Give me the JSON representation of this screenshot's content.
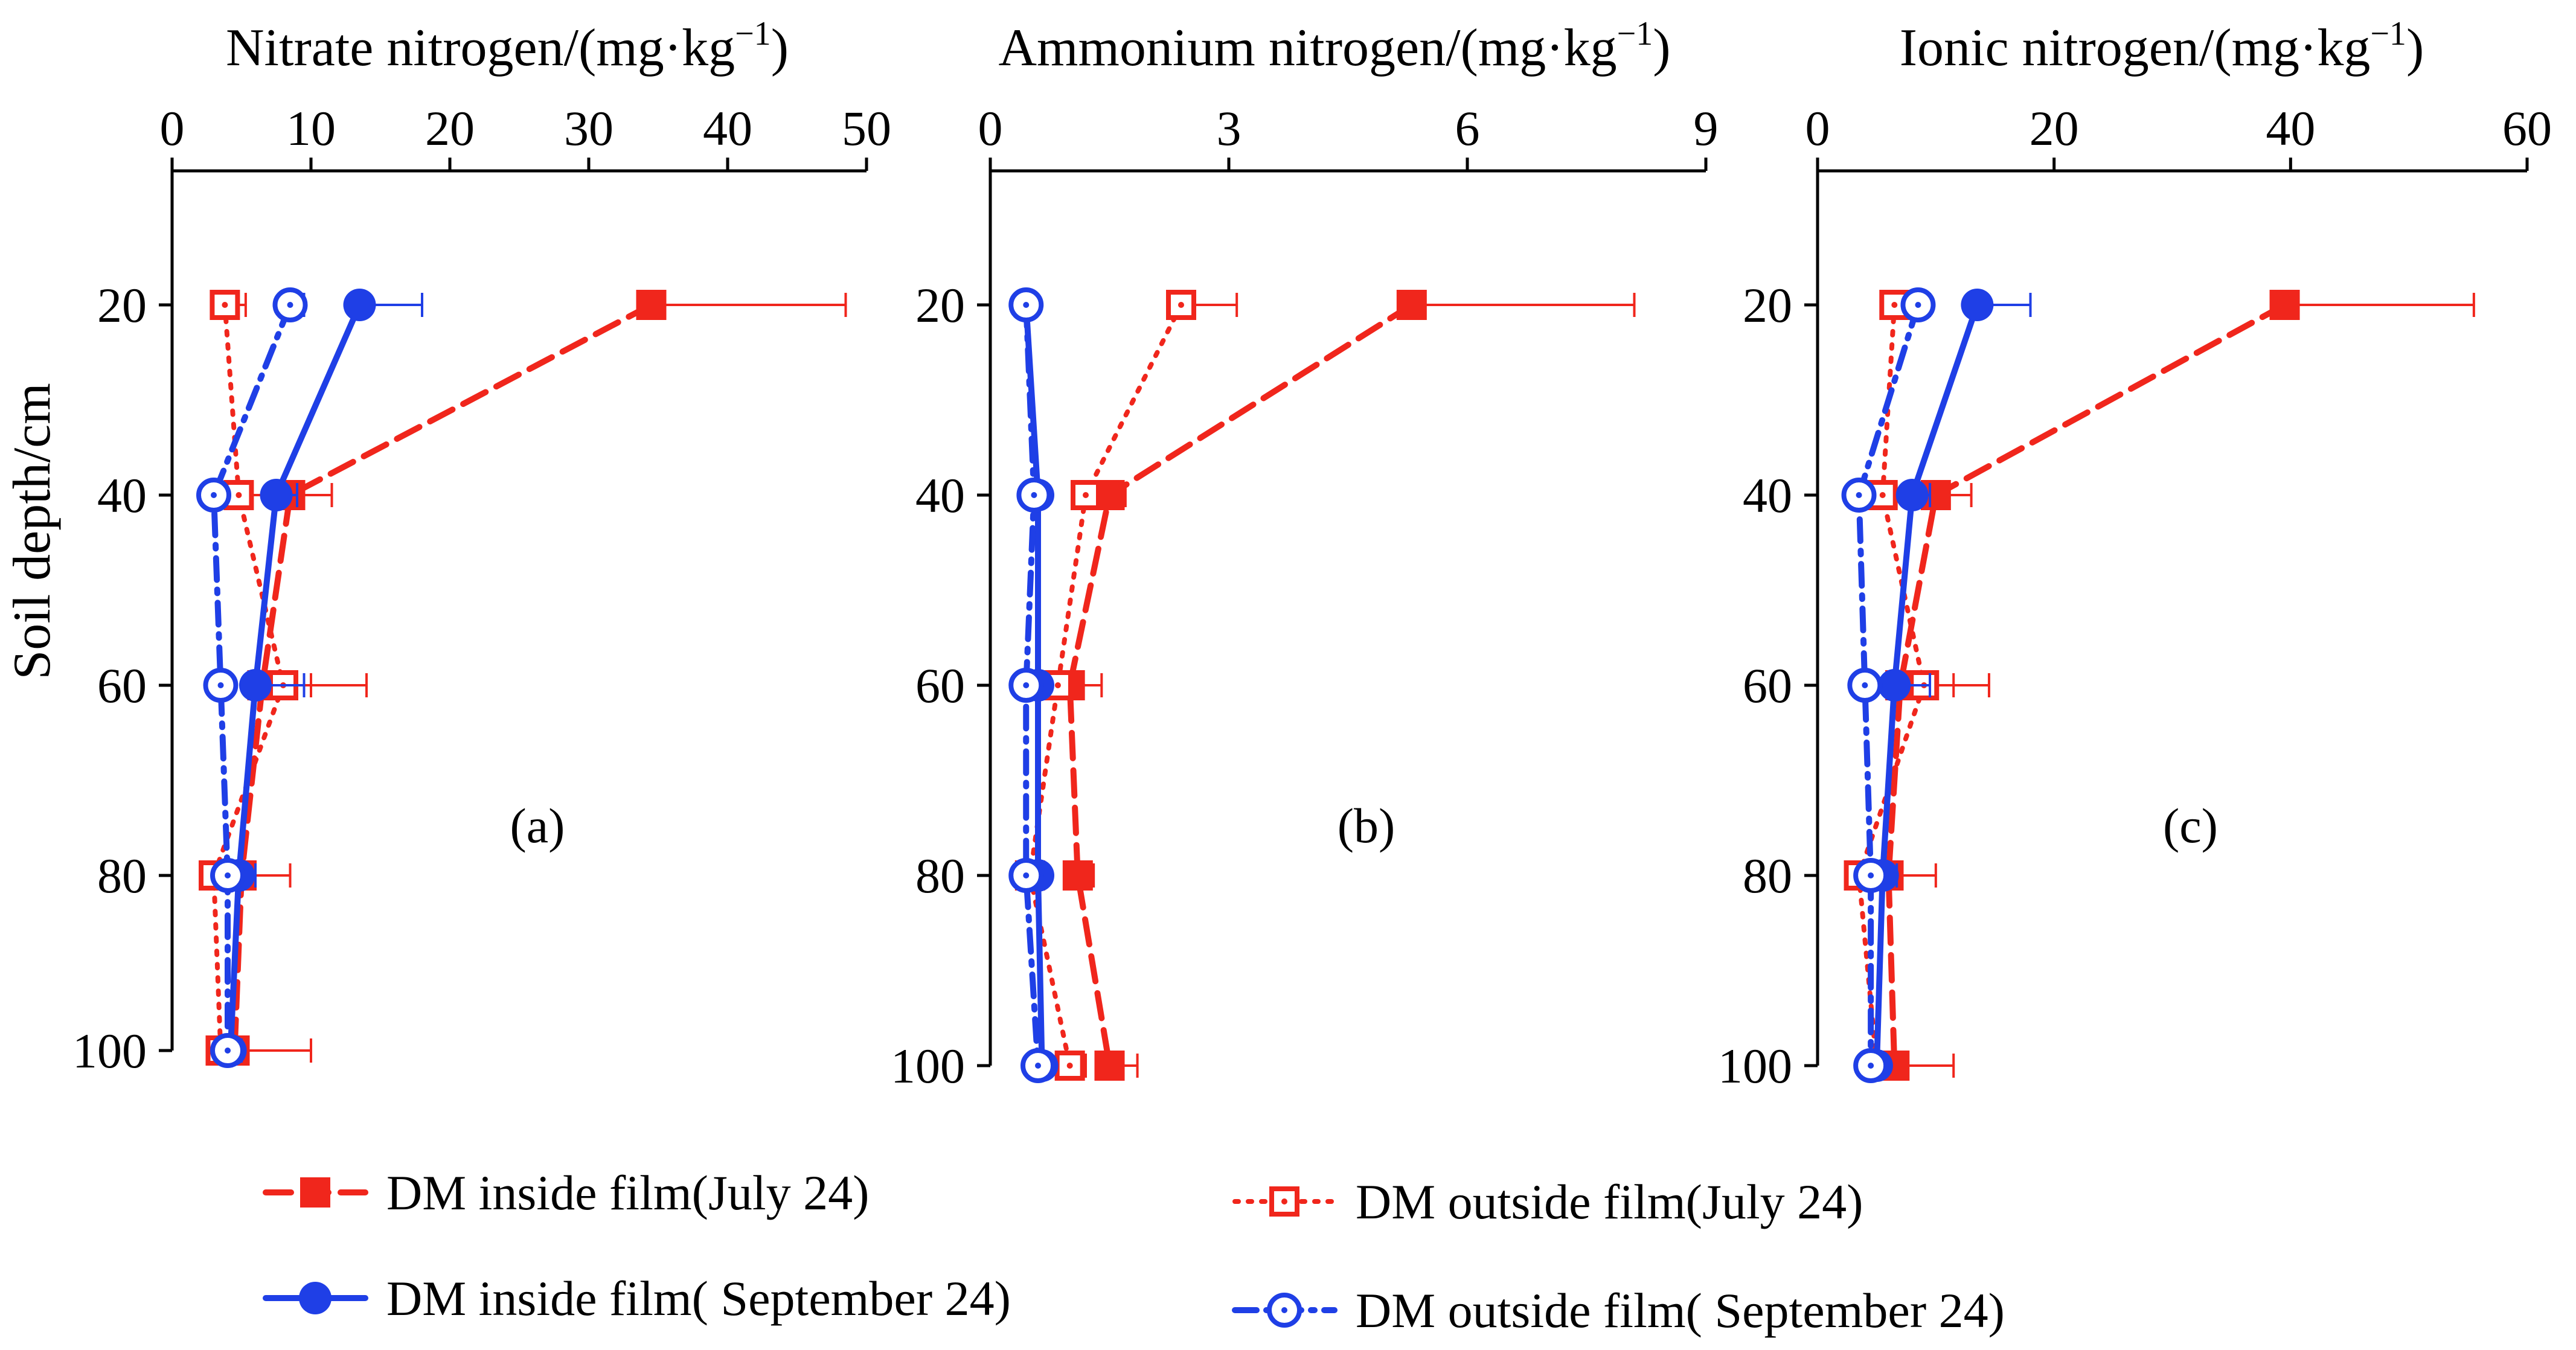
{
  "figure": {
    "ylabel": "Soil depth/cm",
    "colors": {
      "red": "#f0261c",
      "blue": "#1f3fe6",
      "axis": "#000000"
    }
  },
  "chart_data": [
    {
      "type": "line",
      "panel_label": "(a)",
      "panel_letter": "a",
      "title": "Nitrate nitrogen/(mg·kg",
      "title_sup": "−1",
      "title_end": ")",
      "xlim": [
        0,
        50
      ],
      "xticks": [
        0,
        10,
        20,
        30,
        40,
        50
      ],
      "ylim": [
        10,
        100
      ],
      "yticks": [
        20,
        40,
        60,
        80,
        100
      ],
      "y_inverted": true,
      "ylabel": "Soil depth/cm",
      "series": [
        {
          "name": "DM inside film(July 24)",
          "color": "#f0261c",
          "style": "dashed",
          "marker": "square-filled",
          "x": [
            34.5,
            8.5,
            6.5,
            5.0,
            4.5
          ],
          "y": [
            20,
            40,
            60,
            80,
            100
          ],
          "err": [
            14.0,
            3.0,
            7.5,
            3.5,
            5.5
          ]
        },
        {
          "name": "DM outside film(July 24)",
          "color": "#f0261c",
          "style": "dotted",
          "marker": "square-open-dot",
          "x": [
            3.8,
            4.8,
            8.0,
            3.0,
            3.5
          ],
          "y": [
            20,
            40,
            60,
            80,
            100
          ],
          "err": [
            1.5,
            2.5,
            2.0,
            1.0,
            1.5
          ]
        },
        {
          "name": "DM inside film( September 24)",
          "color": "#1f3fe6",
          "style": "solid",
          "marker": "circle-filled",
          "x": [
            13.5,
            7.5,
            6.0,
            4.8,
            4.2
          ],
          "y": [
            20,
            40,
            60,
            80,
            100
          ],
          "err": [
            4.5,
            1.5,
            3.5,
            1.2,
            0.8
          ]
        },
        {
          "name": "DM outside film( September 24)",
          "color": "#1f3fe6",
          "style": "dashdot",
          "marker": "circle-open-dot",
          "x": [
            8.5,
            3.0,
            3.5,
            4.0,
            4.0
          ],
          "y": [
            20,
            40,
            60,
            80,
            100
          ],
          "err": [
            1.0,
            0.5,
            0.5,
            0.5,
            0.5
          ]
        }
      ]
    },
    {
      "type": "line",
      "panel_label": "(b)",
      "panel_letter": "b",
      "title": "Ammonium nitrogen/(mg·kg",
      "title_sup": "−1",
      "title_end": ")",
      "xlim": [
        0,
        9
      ],
      "xticks": [
        0,
        3,
        6,
        9
      ],
      "ylim": [
        10,
        100
      ],
      "yticks": [
        20,
        40,
        60,
        80,
        100
      ],
      "y_inverted": true,
      "ylabel": "",
      "series": [
        {
          "name": "DM inside film(July 24)",
          "color": "#f0261c",
          "style": "dashed",
          "marker": "square-filled",
          "x": [
            5.3,
            1.5,
            1.0,
            1.1,
            1.5
          ],
          "y": [
            20,
            40,
            60,
            80,
            100
          ],
          "err": [
            2.8,
            0.2,
            0.4,
            0.2,
            0.35
          ]
        },
        {
          "name": "DM outside film(July 24)",
          "color": "#f0261c",
          "style": "dotted",
          "marker": "square-open-dot",
          "x": [
            2.4,
            1.2,
            0.85,
            0.5,
            1.0
          ],
          "y": [
            20,
            40,
            60,
            80,
            100
          ],
          "err": [
            0.7,
            0.2,
            0.2,
            0.15,
            0.2
          ]
        },
        {
          "name": "DM inside film( September 24)",
          "color": "#1f3fe6",
          "style": "solid",
          "marker": "circle-filled",
          "x": [
            0.45,
            0.6,
            0.6,
            0.6,
            0.65
          ],
          "y": [
            20,
            40,
            60,
            80,
            100
          ],
          "err": [
            0.1,
            0.1,
            0.1,
            0.1,
            0.1
          ]
        },
        {
          "name": "DM outside film( September 24)",
          "color": "#1f3fe6",
          "style": "dashdot",
          "marker": "circle-open-dot",
          "x": [
            0.45,
            0.55,
            0.45,
            0.45,
            0.6
          ],
          "y": [
            20,
            40,
            60,
            80,
            100
          ],
          "err": [
            0.05,
            0.05,
            0.05,
            0.05,
            0.05
          ]
        }
      ]
    },
    {
      "type": "line",
      "panel_label": "(c)",
      "panel_letter": "c",
      "title": "Ionic nitrogen/(mg·kg",
      "title_sup": "−1",
      "title_end": ")",
      "xlim": [
        0,
        60
      ],
      "xticks": [
        0,
        20,
        40,
        60
      ],
      "ylim": [
        10,
        100
      ],
      "yticks": [
        20,
        40,
        60,
        80,
        100
      ],
      "y_inverted": true,
      "ylabel": "",
      "series": [
        {
          "name": "DM inside film(July 24)",
          "color": "#f0261c",
          "style": "dashed",
          "marker": "square-filled",
          "x": [
            39.5,
            10.0,
            7.0,
            6.0,
            6.5
          ],
          "y": [
            20,
            40,
            60,
            80,
            100
          ],
          "err": [
            16.0,
            3.0,
            7.5,
            4.0,
            5.0
          ]
        },
        {
          "name": "DM outside film(July 24)",
          "color": "#f0261c",
          "style": "dotted",
          "marker": "square-open-dot",
          "x": [
            6.5,
            5.5,
            9.0,
            3.5,
            5.0
          ],
          "y": [
            20,
            40,
            60,
            80,
            100
          ],
          "err": [
            1.5,
            2.0,
            2.5,
            1.0,
            1.5
          ]
        },
        {
          "name": "DM inside film( September 24)",
          "color": "#1f3fe6",
          "style": "solid",
          "marker": "circle-filled",
          "x": [
            13.5,
            8.0,
            6.5,
            5.5,
            5.0
          ],
          "y": [
            20,
            40,
            60,
            80,
            100
          ],
          "err": [
            4.5,
            1.5,
            3.0,
            1.2,
            0.8
          ]
        },
        {
          "name": "DM outside film( September 24)",
          "color": "#1f3fe6",
          "style": "dashdot",
          "marker": "circle-open-dot",
          "x": [
            8.5,
            3.5,
            4.0,
            4.5,
            4.5
          ],
          "y": [
            20,
            40,
            60,
            80,
            100
          ],
          "err": [
            1.0,
            0.5,
            0.5,
            0.5,
            0.5
          ]
        }
      ]
    }
  ],
  "legend": [
    {
      "label": "DM inside film(July 24)",
      "color": "#f0261c",
      "style": "dashed",
      "marker": "square-filled"
    },
    {
      "label": "DM outside film(July 24)",
      "color": "#f0261c",
      "style": "dotted",
      "marker": "square-open-dot"
    },
    {
      "label": "DM inside film( September 24)",
      "color": "#1f3fe6",
      "style": "solid",
      "marker": "circle-filled"
    },
    {
      "label": "DM outside film( September 24)",
      "color": "#1f3fe6",
      "style": "dashdot",
      "marker": "circle-open-dot"
    }
  ]
}
